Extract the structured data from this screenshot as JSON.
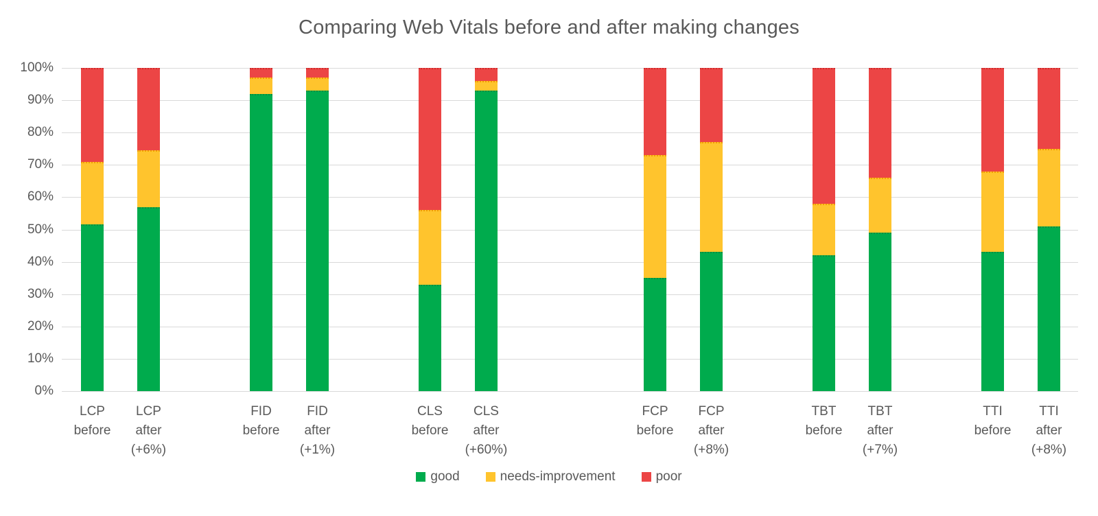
{
  "title": "Comparing Web Vitals before and after making changes",
  "colors": {
    "good": {
      "fill": "#00AB4D",
      "dot": "#008F40"
    },
    "needs_improvement": {
      "fill": "#FFC42D",
      "dot": "#F09F00"
    },
    "poor": {
      "fill": "#EC4545",
      "dot": "#CE2B2B"
    },
    "text": "#595959",
    "gridline": "#D9D9D9"
  },
  "chart_data": {
    "type": "bar",
    "stacked": true,
    "orientation": "vertical",
    "unit": "%",
    "title": "Comparing Web Vitals before and after making changes",
    "xlabel": "",
    "ylabel": "",
    "y_axis": {
      "min": 0,
      "max": 100,
      "step": 10,
      "tick_labels": [
        "0%",
        "10%",
        "20%",
        "30%",
        "40%",
        "50%",
        "60%",
        "70%",
        "80%",
        "90%",
        "100%"
      ],
      "grid": true
    },
    "legend_position": "bottom-center",
    "series": [
      {
        "name": "good",
        "key": "good"
      },
      {
        "name": "needs-improvement",
        "key": "needs_improvement"
      },
      {
        "name": "poor",
        "key": "poor"
      }
    ],
    "bars": [
      {
        "label_lines": [
          "LCP",
          "before"
        ],
        "slot": 0,
        "good": 51.5,
        "needs_improvement": 19.5,
        "poor": 29
      },
      {
        "label_lines": [
          "LCP",
          "after",
          "(+6%)"
        ],
        "slot": 1,
        "good": 57,
        "needs_improvement": 17.5,
        "poor": 25.5
      },
      {
        "label_lines": [
          "FID",
          "before"
        ],
        "slot": 3,
        "good": 92,
        "needs_improvement": 5,
        "poor": 3
      },
      {
        "label_lines": [
          "FID",
          "after",
          "(+1%)"
        ],
        "slot": 4,
        "good": 93,
        "needs_improvement": 4,
        "poor": 3
      },
      {
        "label_lines": [
          "CLS",
          "before"
        ],
        "slot": 6,
        "good": 33,
        "needs_improvement": 23,
        "poor": 44
      },
      {
        "label_lines": [
          "CLS",
          "after",
          "(+60%)"
        ],
        "slot": 7,
        "good": 93,
        "needs_improvement": 3,
        "poor": 4
      },
      {
        "label_lines": [
          "FCP",
          "before"
        ],
        "slot": 10,
        "good": 35,
        "needs_improvement": 38,
        "poor": 27
      },
      {
        "label_lines": [
          "FCP",
          "after",
          "(+8%)"
        ],
        "slot": 11,
        "good": 43,
        "needs_improvement": 34,
        "poor": 23
      },
      {
        "label_lines": [
          "TBT",
          "before"
        ],
        "slot": 13,
        "good": 42,
        "needs_improvement": 16,
        "poor": 42
      },
      {
        "label_lines": [
          "TBT",
          "after",
          "(+7%)"
        ],
        "slot": 14,
        "good": 49,
        "needs_improvement": 17,
        "poor": 34
      },
      {
        "label_lines": [
          "TTI",
          "before"
        ],
        "slot": 16,
        "good": 43,
        "needs_improvement": 25,
        "poor": 32
      },
      {
        "label_lines": [
          "TTI",
          "after",
          "(+8%)"
        ],
        "slot": 17,
        "good": 51,
        "needs_improvement": 24,
        "poor": 25
      }
    ]
  }
}
